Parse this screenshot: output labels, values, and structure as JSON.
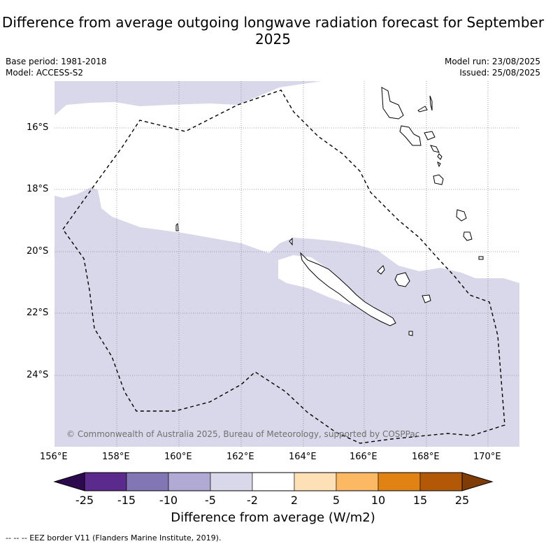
{
  "title": "Difference from average outgoing longwave radiation forecast for September 2025",
  "meta": {
    "base_period": "Base period: 1981-2018",
    "model": "Model: ACCESS-S2",
    "model_run": "Model run: 23/08/2025",
    "issued": "Issued: 25/08/2025"
  },
  "map": {
    "lat_labels": [
      "16°S",
      "18°S",
      "20°S",
      "22°S",
      "24°S"
    ],
    "lon_labels": [
      "156°E",
      "158°E",
      "160°E",
      "162°E",
      "164°E",
      "166°E",
      "168°E",
      "170°E"
    ],
    "copyright": "© Commonwealth of Australia 2025, Bureau of Meteorology, supported by COSPPac",
    "shaded_category": "-5 to -2",
    "colors": {
      "shade": "#d8d8ea",
      "land_outline": "#000000",
      "grid": "#888888"
    }
  },
  "colorbar": {
    "labels": [
      "-25",
      "-15",
      "-10",
      "-5",
      "-2",
      "2",
      "5",
      "10",
      "15",
      "25"
    ],
    "colors": [
      "#2d0a4e",
      "#5a2a8c",
      "#8276b4",
      "#b0aad4",
      "#d8d8ea",
      "#ffffff",
      "#fee0b6",
      "#fdb863",
      "#e08214",
      "#b35806",
      "#7f3b08"
    ],
    "title": "Difference from average (W/m2)"
  },
  "footnote": "-- -- -- EEZ border V11 (Flanders Marine Institute, 2019)."
}
